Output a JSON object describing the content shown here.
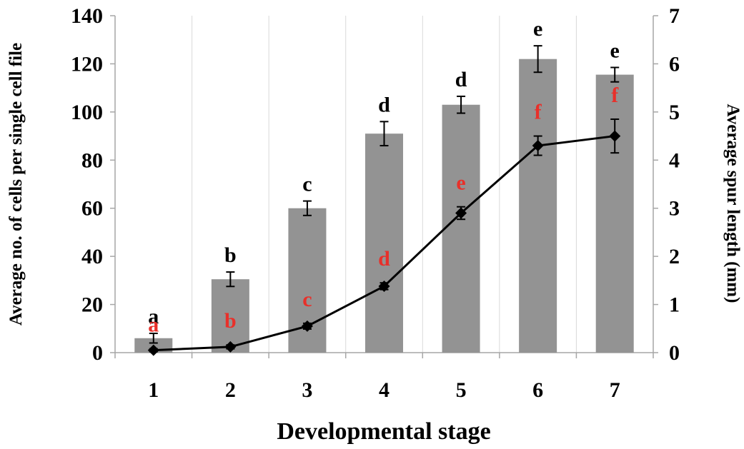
{
  "chart_data": {
    "type": "bar",
    "xlabel": "Developmental stage",
    "ylabel": "Average no. of cells per single cell file",
    "y2label": "Average spur length (mm)",
    "categories": [
      "1",
      "2",
      "3",
      "4",
      "5",
      "6",
      "7"
    ],
    "ylim": [
      0,
      140
    ],
    "y2lim": [
      0,
      7
    ],
    "yticks": [
      "0",
      "20",
      "40",
      "60",
      "80",
      "100",
      "120",
      "140"
    ],
    "y2ticks": [
      "0",
      "1",
      "2",
      "3",
      "4",
      "5",
      "6",
      "7"
    ],
    "grid": "vertical",
    "series": [
      {
        "type": "bar",
        "axis": "left",
        "values": [
          6,
          30.5,
          60,
          91,
          103,
          122,
          115.5
        ],
        "errors": [
          2,
          3,
          3,
          5,
          3.5,
          5.5,
          3
        ],
        "sig_letters": [
          "a",
          "b",
          "c",
          "d",
          "d",
          "e",
          "e"
        ],
        "color": "#939393"
      },
      {
        "type": "line",
        "axis": "right",
        "values": [
          0.05,
          0.12,
          0.55,
          1.38,
          2.9,
          4.3,
          4.5
        ],
        "errors": [
          0.03,
          0.04,
          0.06,
          0.07,
          0.13,
          0.2,
          0.35
        ],
        "sig_letters": [
          "a",
          "b",
          "c",
          "d",
          "e",
          "f",
          "f"
        ],
        "color": "#000000",
        "letter_color": "#e8302a"
      }
    ]
  }
}
